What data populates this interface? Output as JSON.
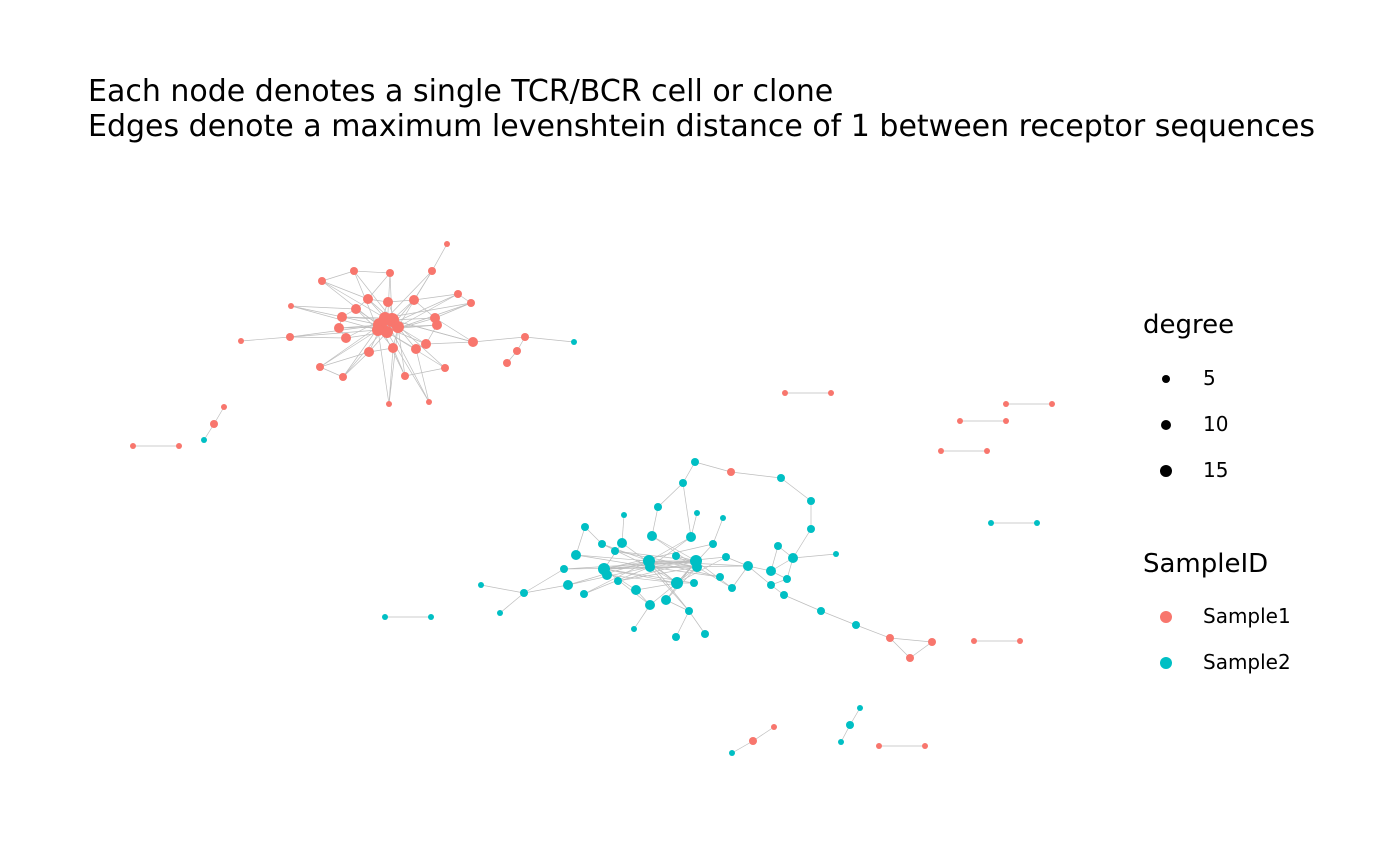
{
  "title": {
    "line1": "Each node denotes a single TCR/BCR cell or clone",
    "line2": "Edges denote a maximum levenshtein distance of 1 between receptor sequences"
  },
  "colors": {
    "Sample1": "#F8766D",
    "Sample2": "#00BFC4",
    "edge": "#bdbdbd",
    "legend_size_key": "#000000"
  },
  "legend": {
    "degree": {
      "title": "degree",
      "entries": [
        {
          "label": "5",
          "value": 5
        },
        {
          "label": "10",
          "value": 10
        },
        {
          "label": "15",
          "value": 15
        }
      ]
    },
    "sample": {
      "title": "SampleID",
      "entries": [
        {
          "label": "Sample1",
          "sample": "Sample1"
        },
        {
          "label": "Sample2",
          "sample": "Sample2"
        }
      ]
    }
  }
}
